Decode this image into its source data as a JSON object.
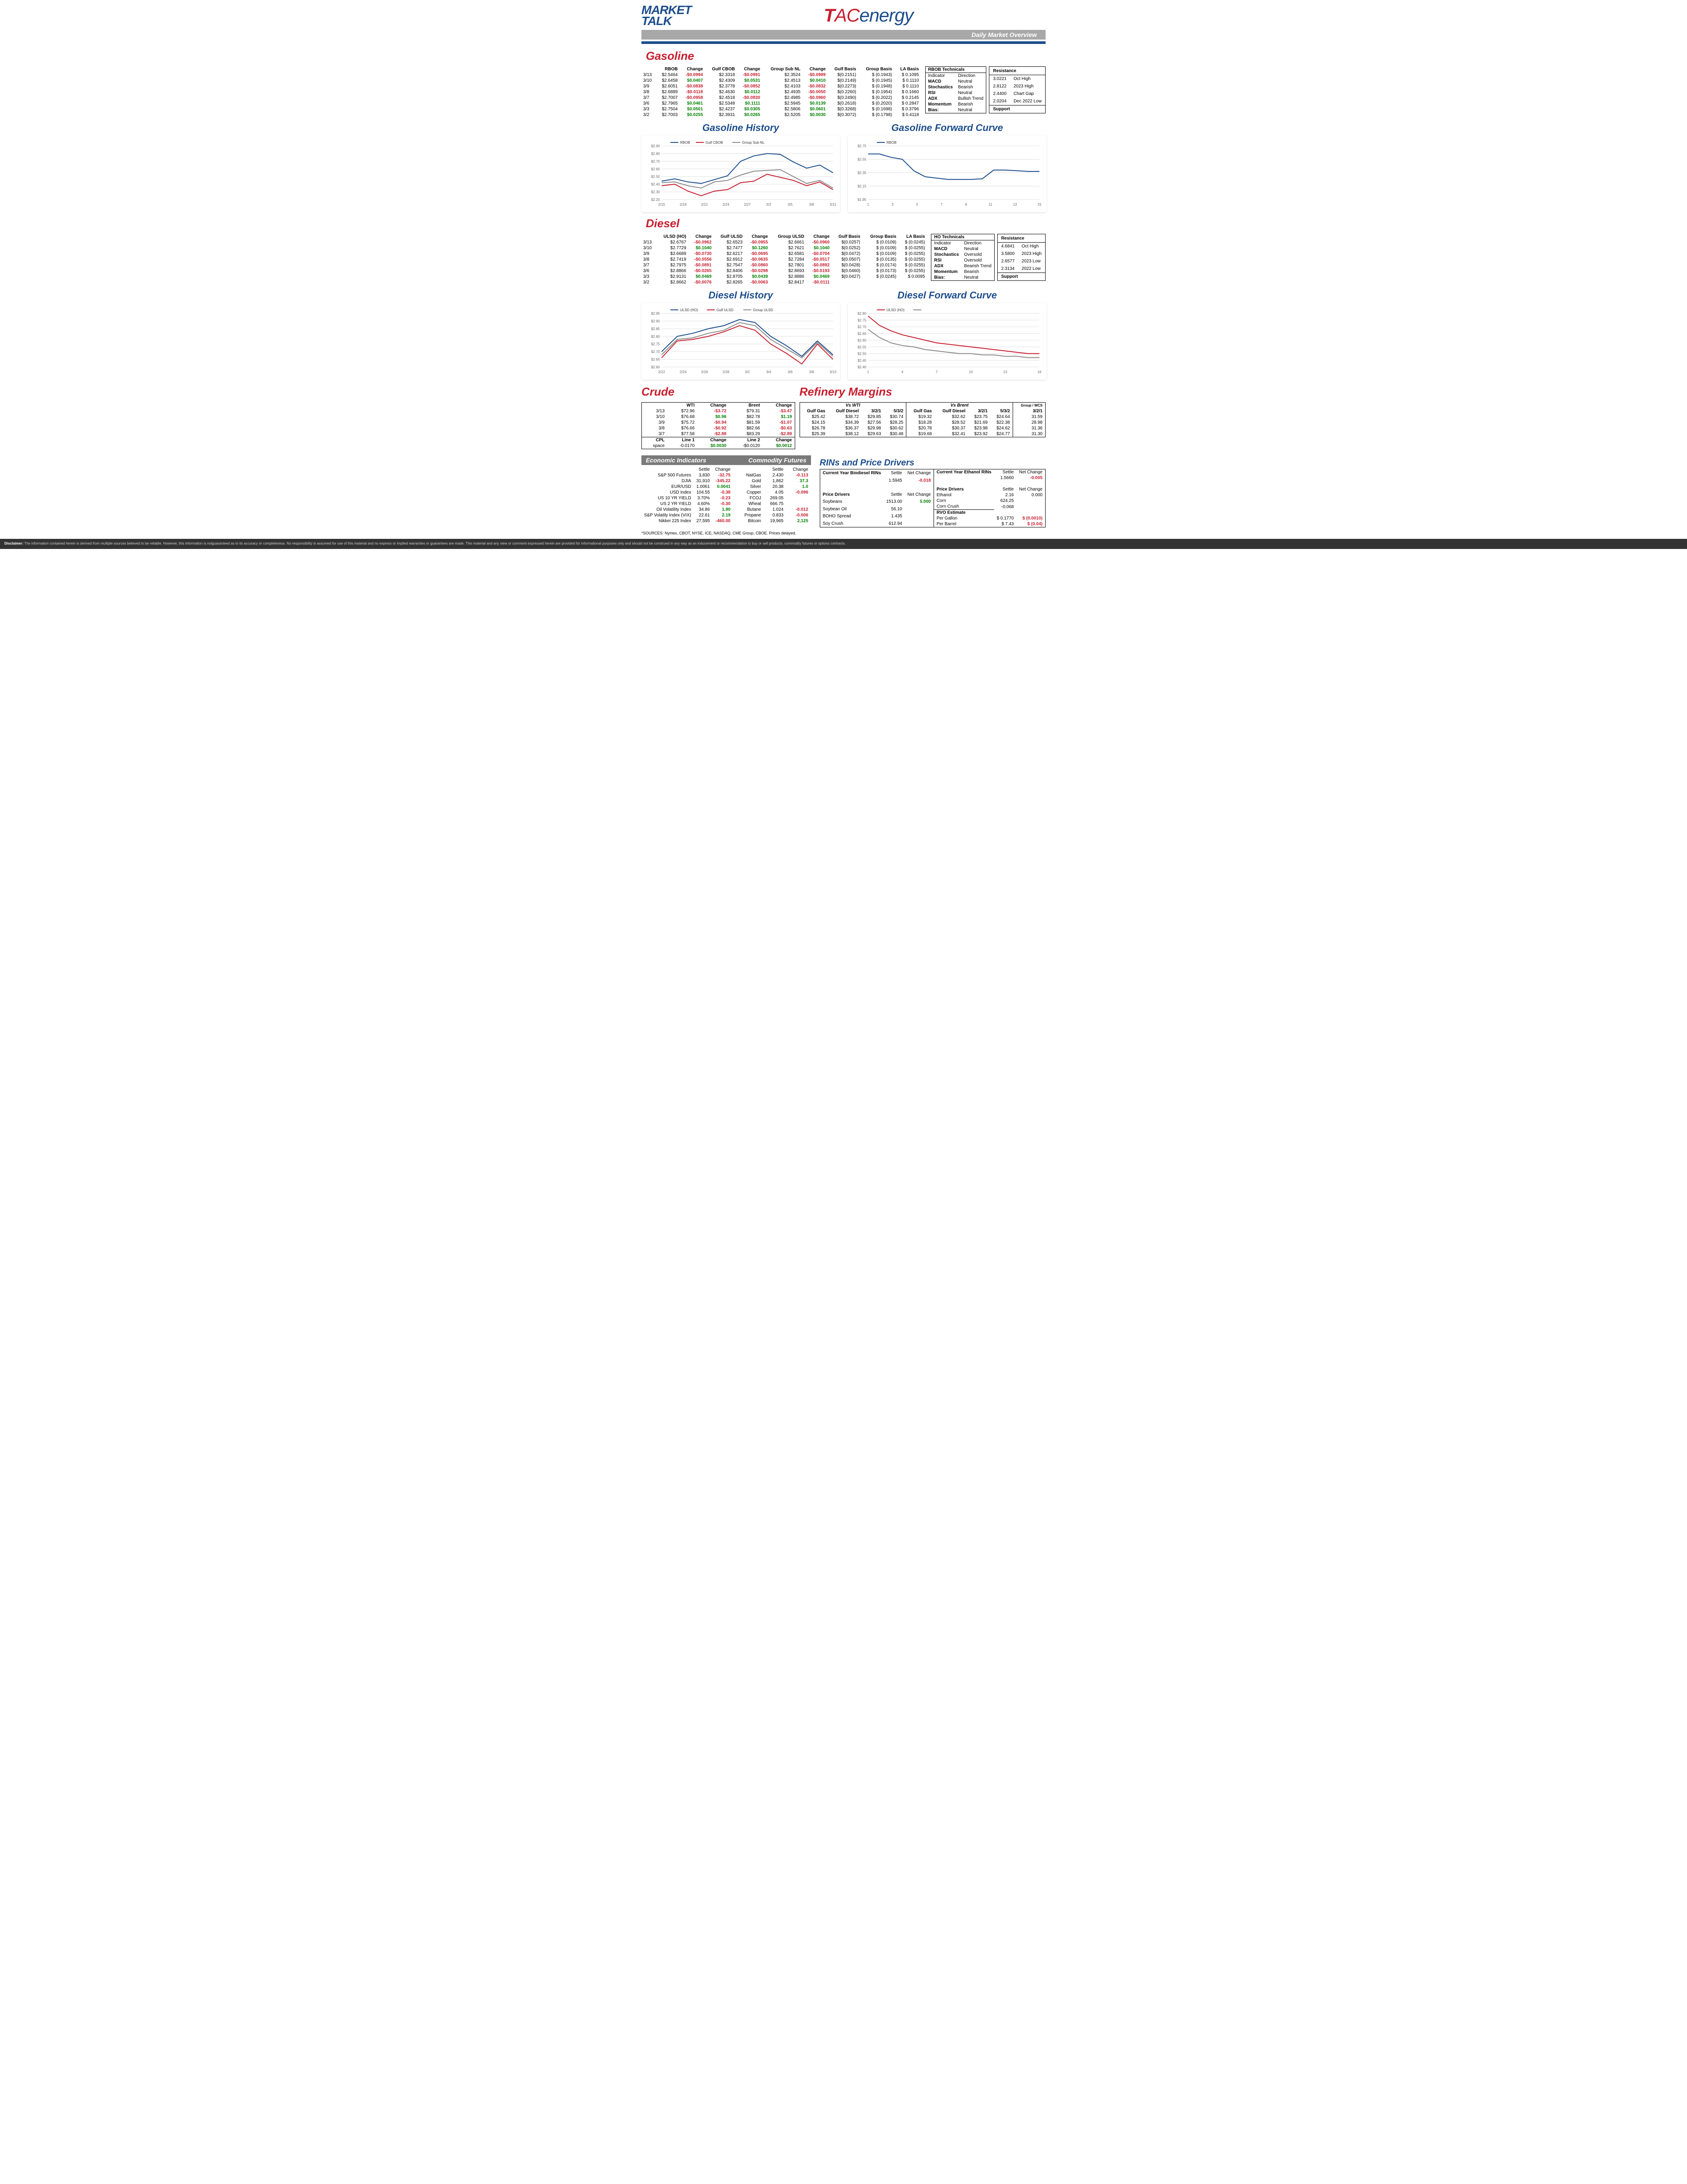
{
  "header": {
    "market_talk_line1": "MARKET",
    "market_talk_line2": "TALK",
    "tac_t": "T",
    "tac_ac": "AC",
    "tac_energy": "energy",
    "banner_text": "Daily Market Overview"
  },
  "colors": {
    "red": "#c81e2e",
    "blue": "#1c4d8c",
    "green": "#008000",
    "gray": "#8a8a8a",
    "grid": "#e0e0e0"
  },
  "gasoline": {
    "title": "Gasoline",
    "headers": [
      "",
      "RBOB",
      "Change",
      "Gulf CBOB",
      "Change",
      "Group Sub NL",
      "Change",
      "Gulf Basis",
      "Group Basis",
      "LA Basis"
    ],
    "rows": [
      [
        "3/13",
        "$2.5464",
        "-$0.0994",
        "$2.3318",
        "-$0.0991",
        "$2.3524",
        "-$0.0989",
        "$(0.2151)",
        "$ (0.1943)",
        "$ 0.1095"
      ],
      [
        "3/10",
        "$2.6458",
        "$0.0407",
        "$2.4309",
        "$0.0531",
        "$2.4513",
        "$0.0410",
        "$(0.2149)",
        "$ (0.1945)",
        "$ 0.1110"
      ],
      [
        "3/9",
        "$2.6051",
        "-$0.0838",
        "$2.3778",
        "-$0.0852",
        "$2.4103",
        "-$0.0832",
        "$(0.2273)",
        "$ (0.1948)",
        "$ 0.1110"
      ],
      [
        "3/8",
        "$2.6889",
        "-$0.0118",
        "$2.4630",
        "$0.0112",
        "$2.4935",
        "-$0.0050",
        "$(0.2260)",
        "$ (0.1954)",
        "$ 0.1660"
      ],
      [
        "3/7",
        "$2.7007",
        "-$0.0958",
        "$2.4518",
        "-$0.0830",
        "$2.4985",
        "-$0.0960",
        "$(0.2490)",
        "$ (0.2022)",
        "$ 0.2145"
      ],
      [
        "3/6",
        "$2.7965",
        "$0.0461",
        "$2.5348",
        "$0.1111",
        "$2.5945",
        "$0.0139",
        "$(0.2618)",
        "$ (0.2020)",
        "$ 0.2847"
      ],
      [
        "3/3",
        "$2.7504",
        "$0.0501",
        "$2.4237",
        "$0.0305",
        "$2.5806",
        "$0.0601",
        "$(0.3268)",
        "$ (0.1698)",
        "$ 0.3796"
      ],
      [
        "3/2",
        "$2.7003",
        "$0.0255",
        "$2.3931",
        "$0.0265",
        "$2.5205",
        "$0.0030",
        "$(0.3072)",
        "$ (0.1798)",
        "$ 0.4118"
      ]
    ],
    "tech_title": "RBOB Technicals",
    "tech_headers": [
      "Indicator",
      "Direction"
    ],
    "tech_rows": [
      [
        "MACD",
        "Neutral"
      ],
      [
        "Stochastics",
        "Bearish"
      ],
      [
        "RSI",
        "Neutral"
      ],
      [
        "ADX",
        "Bullish Trend"
      ],
      [
        "Momentum",
        "Bearish"
      ],
      [
        "Bias:",
        "Neutral"
      ]
    ],
    "res_title": "Resistance",
    "res_rows": [
      [
        "3.0221",
        "Oct High"
      ],
      [
        "2.8122",
        "2023 High"
      ],
      [
        "2.4400",
        "Chart Gap"
      ],
      [
        "2.0204",
        "Dec 2022 Low"
      ]
    ],
    "support_label": "Support"
  },
  "gas_history": {
    "title": "Gasoline History",
    "legend": [
      "RBOB",
      "Gulf CBOB",
      "Group Sub NL"
    ],
    "legend_colors": [
      "#1c4d8c",
      "#c81e2e",
      "#8a8a8a"
    ],
    "xlabels": [
      "2/15",
      "2/18",
      "2/21",
      "2/24",
      "2/27",
      "3/2",
      "3/5",
      "3/8",
      "3/11"
    ],
    "ylabels": [
      "$2.20",
      "$2.30",
      "$2.40",
      "$2.50",
      "$2.60",
      "$2.70",
      "$2.80",
      "$2.90"
    ],
    "ylim": [
      2.2,
      2.9
    ],
    "series": {
      "RBOB": [
        2.44,
        2.47,
        2.43,
        2.41,
        2.46,
        2.51,
        2.7,
        2.77,
        2.8,
        2.79,
        2.69,
        2.61,
        2.65,
        2.55
      ],
      "GulfCBOB": [
        2.38,
        2.4,
        2.31,
        2.25,
        2.31,
        2.33,
        2.42,
        2.44,
        2.53,
        2.49,
        2.45,
        2.38,
        2.43,
        2.33
      ],
      "GroupSubNL": [
        2.42,
        2.43,
        2.38,
        2.35,
        2.43,
        2.45,
        2.52,
        2.57,
        2.58,
        2.59,
        2.5,
        2.41,
        2.45,
        2.35
      ]
    }
  },
  "gas_forward": {
    "title": "Gasoline Forward Curve",
    "legend": [
      "RBOB"
    ],
    "legend_colors": [
      "#1c4d8c"
    ],
    "xlabels": [
      "1",
      "3",
      "5",
      "7",
      "9",
      "11",
      "13",
      "15"
    ],
    "ylabels": [
      "$1.95",
      "$2.15",
      "$2.35",
      "$2.55",
      "$2.75"
    ],
    "ylim": [
      1.95,
      2.75
    ],
    "series": {
      "RBOB": [
        2.63,
        2.63,
        2.58,
        2.55,
        2.38,
        2.29,
        2.27,
        2.25,
        2.25,
        2.25,
        2.26,
        2.39,
        2.39,
        2.38,
        2.37,
        2.37
      ]
    }
  },
  "diesel": {
    "title": "Diesel",
    "headers": [
      "",
      "ULSD (HO)",
      "Change",
      "Gulf ULSD",
      "Change",
      "Group ULSD",
      "Change",
      "Gulf Basis",
      "Group Basis",
      "LA Basis"
    ],
    "rows": [
      [
        "3/13",
        "$2.6767",
        "-$0.0962",
        "$2.6523",
        "-$0.0955",
        "$2.6661",
        "-$0.0960",
        "$(0.0257)",
        "$ (0.0109)",
        "$ (0.0245)"
      ],
      [
        "3/10",
        "$2.7729",
        "$0.1040",
        "$2.7477",
        "$0.1260",
        "$2.7621",
        "$0.1040",
        "$(0.0252)",
        "$ (0.0109)",
        "$ (0.0255)"
      ],
      [
        "3/9",
        "$2.6689",
        "-$0.0730",
        "$2.6217",
        "-$0.0695",
        "$2.6581",
        "-$0.0704",
        "$(0.0472)",
        "$ (0.0109)",
        "$ (0.0255)"
      ],
      [
        "3/8",
        "$2.7419",
        "-$0.0556",
        "$2.6912",
        "-$0.0635",
        "$2.7284",
        "-$0.0517",
        "$(0.0507)",
        "$ (0.0135)",
        "$ (0.0255)"
      ],
      [
        "3/7",
        "$2.7975",
        "-$0.0891",
        "$2.7547",
        "-$0.0860",
        "$2.7801",
        "-$0.0892",
        "$(0.0428)",
        "$ (0.0174)",
        "$ (0.0255)"
      ],
      [
        "3/6",
        "$2.8866",
        "-$0.0265",
        "$2.8406",
        "-$0.0298",
        "$2.8693",
        "-$0.0193",
        "$(0.0460)",
        "$ (0.0173)",
        "$ (0.0255)"
      ],
      [
        "3/3",
        "$2.9131",
        "$0.0469",
        "$2.8705",
        "$0.0439",
        "$2.8886",
        "$0.0469",
        "$(0.0427)",
        "$ (0.0245)",
        "$ 0.0095"
      ],
      [
        "3/2",
        "$2.8662",
        "-$0.0076",
        "$2.8265",
        "-$0.0063",
        "$2.8417",
        "-$0.0111",
        "",
        "",
        ""
      ]
    ],
    "tech_title": "HO Technicals",
    "tech_headers": [
      "Indicator",
      "Direction"
    ],
    "tech_rows": [
      [
        "MACD",
        "Neutral"
      ],
      [
        "Stochastics",
        "Oversold"
      ],
      [
        "RSI",
        "Oversold"
      ],
      [
        "ADX",
        "Bearish Trend"
      ],
      [
        "Momentum",
        "Bearish"
      ],
      [
        "Bias:",
        "Neutral"
      ]
    ],
    "res_title": "Resistance",
    "res_rows": [
      [
        "4.6841",
        "Oct High"
      ],
      [
        "3.5800",
        "2023 High"
      ],
      [
        "2.6577",
        "2023 Low"
      ],
      [
        "2.3134",
        "2022 Low"
      ]
    ],
    "support_label": "Support"
  },
  "diesel_history": {
    "title": "Diesel History",
    "legend": [
      "ULSD (HO)",
      "Gulf ULSD",
      "Group ULSD"
    ],
    "legend_colors": [
      "#1c4d8c",
      "#c81e2e",
      "#8a8a8a"
    ],
    "xlabels": [
      "2/22",
      "2/24",
      "2/26",
      "2/28",
      "3/2",
      "3/4",
      "3/6",
      "3/8",
      "3/10"
    ],
    "ylabels": [
      "$2.60",
      "$2.65",
      "$2.70",
      "$2.75",
      "$2.80",
      "$2.85",
      "$2.90",
      "$2.95"
    ],
    "ylim": [
      2.6,
      2.95
    ],
    "series": {
      "ULSD": [
        2.7,
        2.8,
        2.82,
        2.85,
        2.87,
        2.91,
        2.89,
        2.8,
        2.74,
        2.67,
        2.77,
        2.68
      ],
      "GulfULSD": [
        2.66,
        2.77,
        2.78,
        2.8,
        2.83,
        2.87,
        2.84,
        2.75,
        2.69,
        2.62,
        2.75,
        2.65
      ],
      "GroupULSD": [
        2.68,
        2.78,
        2.79,
        2.82,
        2.84,
        2.89,
        2.87,
        2.78,
        2.72,
        2.66,
        2.76,
        2.67
      ]
    }
  },
  "diesel_forward": {
    "title": "Diesel Forward Curve",
    "legend": [
      "ULSD (HO)",
      ""
    ],
    "legend_colors": [
      "#c81e2e",
      "#8a8a8a"
    ],
    "xlabels": [
      "1",
      "4",
      "7",
      "10",
      "13",
      "16"
    ],
    "ylabels": [
      "$2.40",
      "$2.45",
      "$2.50",
      "$2.55",
      "$2.60",
      "$2.65",
      "$2.70",
      "$2.75",
      "$2.80"
    ],
    "ylim": [
      2.4,
      2.8
    ],
    "series": {
      "A": [
        2.78,
        2.71,
        2.67,
        2.64,
        2.62,
        2.6,
        2.58,
        2.57,
        2.56,
        2.55,
        2.54,
        2.53,
        2.52,
        2.51,
        2.5,
        2.5
      ],
      "B": [
        2.68,
        2.62,
        2.58,
        2.56,
        2.55,
        2.53,
        2.52,
        2.51,
        2.5,
        2.5,
        2.49,
        2.49,
        2.48,
        2.48,
        2.47,
        2.47
      ]
    }
  },
  "crude": {
    "title": "Crude",
    "headers": [
      "",
      "WTI",
      "Change",
      "Brent",
      "Change"
    ],
    "rows": [
      [
        "3/13",
        "$72.96",
        "-$3.72",
        "$79.31",
        "-$3.47"
      ],
      [
        "3/10",
        "$76.68",
        "$0.96",
        "$82.78",
        "$1.19"
      ],
      [
        "3/9",
        "$75.72",
        "-$0.94",
        "$81.59",
        "-$1.07"
      ],
      [
        "3/8",
        "$76.66",
        "-$0.92",
        "$82.66",
        "-$0.63"
      ],
      [
        "3/7",
        "$77.58",
        "-$2.88",
        "$83.29",
        "-$2.89"
      ]
    ],
    "cpl_headers": [
      "CPL",
      "Line 1",
      "Change",
      "Line 2",
      "Change"
    ],
    "cpl_row": [
      "space",
      "-0.0170",
      "$0.0030",
      "-$0.0120",
      "$0.0012"
    ]
  },
  "refinery": {
    "title": "Refinery Margins",
    "wti_label": "Vs WTI",
    "brent_label": "Vs Brent",
    "group_label": "Group / WCS",
    "headers_wti": [
      "Gulf Gas",
      "Gulf Diesel",
      "3/2/1",
      "5/3/2"
    ],
    "headers_brent": [
      "Gulf Gas",
      "Gulf Diesel",
      "3/2/1",
      "5/3/2"
    ],
    "headers_group": [
      "3/2/1"
    ],
    "rows": [
      [
        "$25.42",
        "$38.72",
        "$29.85",
        "$30.74",
        "$19.32",
        "$32.62",
        "$23.75",
        "$24.64",
        "31.59"
      ],
      [
        "$24.15",
        "$34.39",
        "$27.56",
        "$28.25",
        "$18.28",
        "$28.52",
        "$21.69",
        "$22.38",
        "28.98"
      ],
      [
        "$26.78",
        "$36.37",
        "$29.98",
        "$30.62",
        "$20.78",
        "$30.37",
        "$23.98",
        "$24.62",
        "31.36"
      ],
      [
        "$25.39",
        "$38.12",
        "$29.63",
        "$30.48",
        "$19.68",
        "$32.41",
        "$23.92",
        "$24.77",
        "31.30"
      ]
    ]
  },
  "econ": {
    "title_left": "Economic Indicators",
    "title_right": "Commodity Futures",
    "left_headers": [
      "",
      "Settle",
      "Change"
    ],
    "left_rows": [
      [
        "S&P 500 Futures",
        "3,830",
        "-32.75"
      ],
      [
        "DJIA",
        "31,910",
        "-345.22"
      ],
      [
        "EUR/USD",
        "1.0061",
        "0.0041"
      ],
      [
        "USD Index",
        "104.55",
        "-0.38"
      ],
      [
        "US 10 YR YIELD",
        "3.70%",
        "-0.23"
      ],
      [
        "US 2 YR YIELD",
        "4.60%",
        "-0.30"
      ],
      [
        "Oil Volatility Index",
        "34.86",
        "1.90"
      ],
      [
        "S&P Volatily Index (VIX)",
        "22.61",
        "2.19"
      ],
      [
        "Nikkei 225 Index",
        "27,595",
        "-460.00"
      ]
    ],
    "right_headers": [
      "",
      "Settle",
      "Change"
    ],
    "right_rows": [
      [
        "NatGas",
        "2.430",
        "-0.113"
      ],
      [
        "Gold",
        "1,862",
        "37.3"
      ],
      [
        "Silver",
        "20.38",
        "1.0"
      ],
      [
        "Copper",
        "4.05",
        "-0.096"
      ],
      [
        "FCOJ",
        "269.05",
        ""
      ],
      [
        "Wheat",
        "666.75",
        ""
      ],
      [
        "Butane",
        "1.024",
        "-0.012"
      ],
      [
        "Propane",
        "0.833",
        "-0.006"
      ],
      [
        "Bitcoin",
        "19,965",
        "2,125"
      ]
    ]
  },
  "rins": {
    "title": "RINs and Price Drivers",
    "bio_title": "Current Year Biodiesel RINs",
    "eth_title": "Current Year Ethanol RINs",
    "col_settle": "Settle",
    "col_change": "Net Change",
    "bio_row": [
      "",
      "1.5945",
      "-0.018"
    ],
    "eth_row": [
      "",
      "1.5660",
      "-0.005"
    ],
    "pd_label": "Price Drivers",
    "pd_left": [
      [
        "Soybeans",
        "1513.00",
        "5.000"
      ],
      [
        "Soybean Oil",
        "56.10",
        ""
      ],
      [
        "BOHO Spread",
        "1.435",
        ""
      ],
      [
        "Soy Crush",
        "612.94",
        ""
      ]
    ],
    "pd_right": [
      [
        "Ethanol",
        "2.16",
        "0.000"
      ],
      [
        "Corn",
        "624.25",
        ""
      ],
      [
        "Corn Crush",
        "-0.068",
        ""
      ]
    ],
    "rvo_title": "RVO Estimate",
    "rvo_rows": [
      [
        "Per Gallon",
        "$ 0.1770",
        "$ (0.0010)"
      ],
      [
        "Per Barrel",
        "$ 7.43",
        "$ (0.04)"
      ]
    ]
  },
  "sources": "*SOURCES: Nymex, CBOT, NYSE, ICE, NASDAQ, CME Group, CBOE.   Prices delayed.",
  "disclaimer_label": "Disclaimer:",
  "disclaimer": "The information contained herein is derived from multiple sources believed to be reliable.  However, this information is notguaranteed as to its accuracy or completeness. No responsibility is assumed for use of this material and no express or implied warranties or guarantees are made. This material and any view or comment expressed herein are provided for informational purposes only and should not be construed in any way as an inducement or recommendation to buy or sell products, commodity futures or options contracts."
}
